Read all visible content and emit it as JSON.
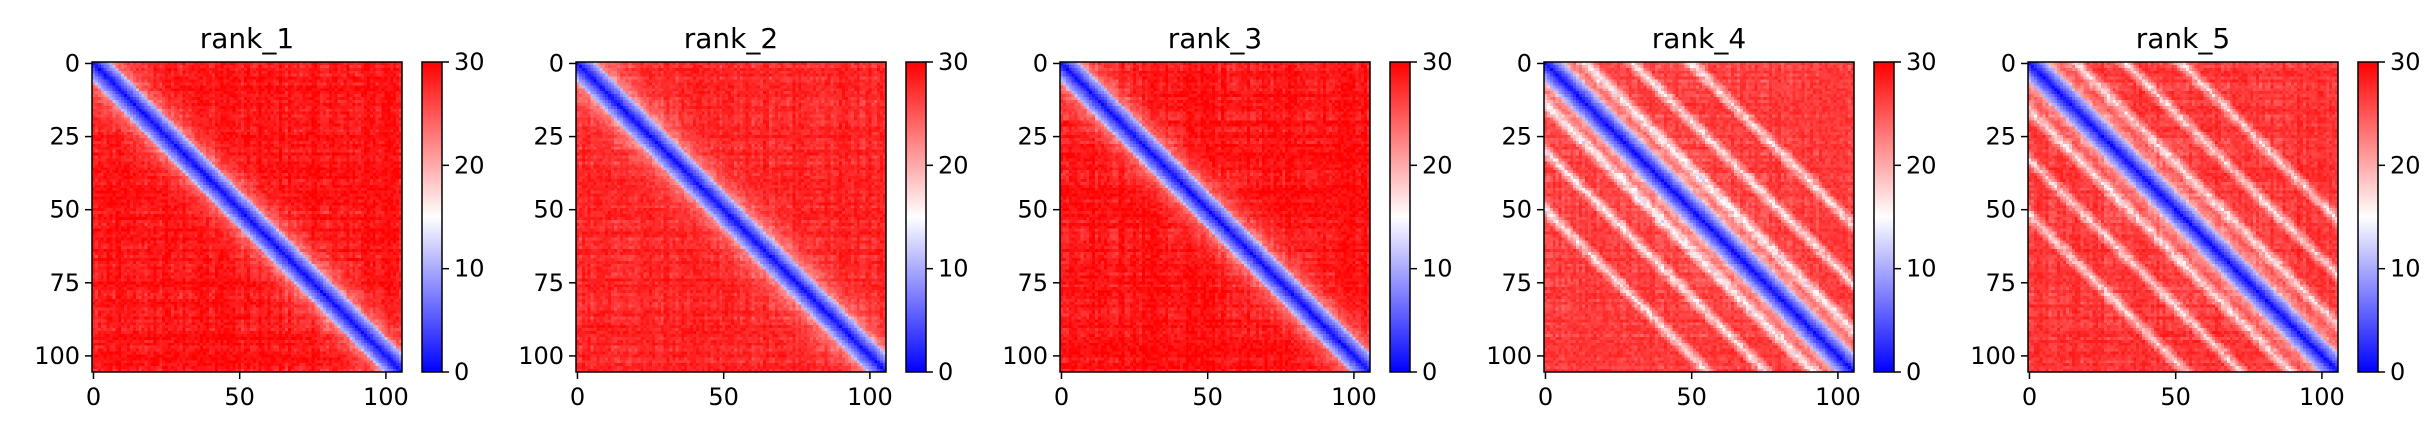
{
  "colormap": {
    "low": "#0000ff",
    "mid": "#ffffff",
    "high": "#ff0000"
  },
  "chart_data": [
    {
      "type": "heatmap",
      "title": "rank_1",
      "n": 106,
      "xlim": [
        0,
        105
      ],
      "ylim": [
        105,
        0
      ],
      "x_ticks": [
        0,
        50,
        100
      ],
      "y_ticks": [
        0,
        25,
        50,
        75,
        100
      ],
      "colorbar": {
        "range": [
          0,
          30
        ],
        "ticks": [
          0,
          10,
          20,
          30
        ]
      },
      "grid": false,
      "pattern": {
        "diagonal_width": 7,
        "background": 29.5,
        "band_offsets": [],
        "band_strength": 0
      }
    },
    {
      "type": "heatmap",
      "title": "rank_2",
      "n": 106,
      "xlim": [
        0,
        105
      ],
      "ylim": [
        105,
        0
      ],
      "x_ticks": [
        0,
        50,
        100
      ],
      "y_ticks": [
        0,
        25,
        50,
        75,
        100
      ],
      "colorbar": {
        "range": [
          0,
          30
        ],
        "ticks": [
          0,
          10,
          20,
          30
        ]
      },
      "grid": false,
      "pattern": {
        "diagonal_width": 7,
        "background": 28.5,
        "band_offsets": [],
        "band_strength": 0
      }
    },
    {
      "type": "heatmap",
      "title": "rank_3",
      "n": 106,
      "xlim": [
        0,
        105
      ],
      "ylim": [
        105,
        0
      ],
      "x_ticks": [
        0,
        50,
        100
      ],
      "y_ticks": [
        0,
        25,
        50,
        75,
        100
      ],
      "colorbar": {
        "range": [
          0,
          30
        ],
        "ticks": [
          0,
          10,
          20,
          30
        ]
      },
      "grid": false,
      "pattern": {
        "diagonal_width": 7,
        "background": 29.5,
        "band_offsets": [],
        "band_strength": 0
      }
    },
    {
      "type": "heatmap",
      "title": "rank_4",
      "n": 106,
      "xlim": [
        0,
        105
      ],
      "ylim": [
        105,
        0
      ],
      "x_ticks": [
        0,
        50,
        100
      ],
      "y_ticks": [
        0,
        25,
        50,
        75,
        100
      ],
      "colorbar": {
        "range": [
          0,
          30
        ],
        "ticks": [
          0,
          10,
          20,
          30
        ]
      },
      "grid": false,
      "pattern": {
        "diagonal_width": 7,
        "background": 27,
        "band_offsets": [
          14,
          30,
          50
        ],
        "band_strength": 12
      }
    },
    {
      "type": "heatmap",
      "title": "rank_5",
      "n": 106,
      "xlim": [
        0,
        105
      ],
      "ylim": [
        105,
        0
      ],
      "x_ticks": [
        0,
        50,
        100
      ],
      "y_ticks": [
        0,
        25,
        50,
        75,
        100
      ],
      "colorbar": {
        "range": [
          0,
          30
        ],
        "ticks": [
          0,
          10,
          20,
          30
        ]
      },
      "grid": false,
      "pattern": {
        "diagonal_width": 7,
        "background": 27.5,
        "band_offsets": [
          16,
          33,
          52
        ],
        "band_strength": 11
      }
    }
  ]
}
